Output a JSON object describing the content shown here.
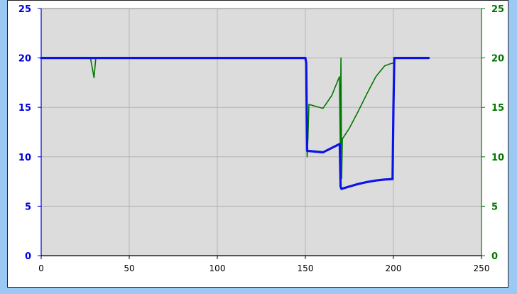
{
  "chart_data": {
    "type": "line",
    "title": "",
    "xlabel": "",
    "ylabel": "",
    "y2label": "",
    "xlim": [
      0,
      250
    ],
    "ylim": [
      0,
      25
    ],
    "y2lim": [
      0,
      25
    ],
    "x_ticks": [
      "0",
      "50",
      "100",
      "150",
      "200",
      "250"
    ],
    "y_ticks": [
      "0",
      "5",
      "10",
      "15",
      "20",
      "25"
    ],
    "y2_ticks": [
      "0",
      "5",
      "10",
      "15",
      "20",
      "25"
    ],
    "grid": true,
    "legend": "none",
    "colors": {
      "plot_background": "#dcdcdc",
      "grid": "#b4b4b4",
      "left_axis": "#0000dd",
      "right_axis": "#007700"
    },
    "series": [
      {
        "axis": "left",
        "color": "#0a14e6",
        "x": [
          0,
          29,
          30,
          150,
          150.5,
          151,
          160,
          169.5,
          170,
          170.5,
          175,
          180,
          185,
          190,
          195,
          199.5,
          200,
          200.5,
          220
        ],
        "y": [
          20,
          20,
          20,
          20,
          19.5,
          10.6,
          10.45,
          11.3,
          7.0,
          6.75,
          7.0,
          7.25,
          7.45,
          7.6,
          7.7,
          7.75,
          15,
          20,
          20
        ]
      },
      {
        "axis": "right",
        "color": "#007700",
        "x": [
          0,
          28,
          30,
          31,
          150,
          150.5,
          151,
          151.5,
          152,
          160,
          165,
          169.3,
          169.8,
          170.2,
          170.6,
          171,
          175,
          180,
          185,
          190,
          195,
          198,
          200,
          200.5,
          220
        ],
        "y": [
          20,
          20,
          18,
          20,
          20,
          19.5,
          10,
          12,
          15.3,
          14.9,
          16.2,
          18.1,
          11.3,
          20,
          7.8,
          11.8,
          12.9,
          14.6,
          16.4,
          18.1,
          19.2,
          19.4,
          19.5,
          20,
          20
        ]
      }
    ]
  }
}
